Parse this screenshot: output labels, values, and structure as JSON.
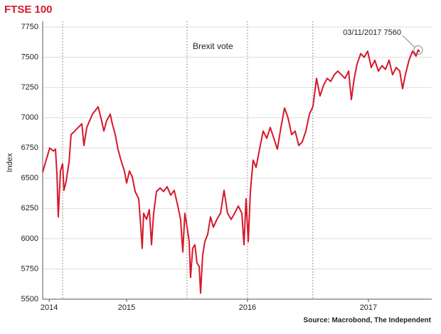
{
  "chart_data": {
    "type": "line",
    "title": "FTSE 100",
    "ylabel": "Index",
    "source": "Source: Macrobond, The Independent",
    "color": "#d7182a",
    "grid": true,
    "xlim": [
      2014.306,
      2017.524
    ],
    "ylim": [
      5500,
      7750
    ],
    "yticks": [
      5500,
      5750,
      6000,
      6250,
      6500,
      6750,
      7000,
      7250,
      7500,
      7750
    ],
    "xticks": [
      {
        "value": 2014.36,
        "label": "2014"
      },
      {
        "value": 2015.0,
        "label": "2015"
      },
      {
        "value": 2016.0,
        "label": "2016"
      },
      {
        "value": 2017.0,
        "label": "2017"
      }
    ],
    "vlines": [
      2014.471,
      2015.5,
      2016.0,
      2016.54
    ],
    "vline_label": {
      "text": "Brexit vote",
      "x": 2015.5
    },
    "annotation": {
      "text": "03/11/2017 7560",
      "x": 2017.412,
      "y": 7560
    },
    "x": [
      2014.306,
      2014.335,
      2014.365,
      2014.394,
      2014.412,
      2014.424,
      2014.435,
      2014.453,
      2014.471,
      2014.482,
      2014.5,
      2014.524,
      2014.541,
      2014.571,
      2014.6,
      2014.63,
      2014.647,
      2014.671,
      2014.694,
      2014.718,
      2014.741,
      2014.765,
      2014.788,
      2014.812,
      2014.835,
      2014.865,
      2014.882,
      2014.906,
      2014.929,
      2014.953,
      2014.982,
      2015.0,
      2015.024,
      2015.047,
      2015.071,
      2015.1,
      2015.118,
      2015.129,
      2015.141,
      2015.165,
      2015.188,
      2015.206,
      2015.224,
      2015.247,
      2015.277,
      2015.306,
      2015.335,
      2015.365,
      2015.394,
      2015.424,
      2015.447,
      2015.465,
      2015.482,
      2015.5,
      2015.518,
      2015.529,
      2015.547,
      2015.565,
      2015.582,
      2015.6,
      2015.612,
      2015.629,
      2015.647,
      2015.671,
      2015.694,
      2015.718,
      2015.747,
      2015.777,
      2015.806,
      2015.835,
      2015.865,
      2015.894,
      2015.924,
      2015.953,
      2015.971,
      2015.988,
      2016.006,
      2016.024,
      2016.047,
      2016.071,
      2016.1,
      2016.13,
      2016.159,
      2016.188,
      2016.218,
      2016.247,
      2016.277,
      2016.306,
      2016.335,
      2016.365,
      2016.394,
      2016.424,
      2016.453,
      2016.483,
      2016.512,
      2016.541,
      2016.571,
      2016.6,
      2016.63,
      2016.659,
      2016.688,
      2016.718,
      2016.747,
      2016.777,
      2016.806,
      2016.836,
      2016.859,
      2016.883,
      2016.906,
      2016.936,
      2016.965,
      2016.994,
      2017.024,
      2017.053,
      2017.083,
      2017.112,
      2017.141,
      2017.171,
      2017.2,
      2017.23,
      2017.259,
      2017.283,
      2017.306,
      2017.336,
      2017.365,
      2017.394,
      2017.412,
      2017.424
    ],
    "values": [
      6550,
      6650,
      6750,
      6725,
      6740,
      6530,
      6180,
      6560,
      6620,
      6400,
      6475,
      6635,
      6860,
      6890,
      6920,
      6950,
      6770,
      6920,
      6975,
      7030,
      7060,
      7090,
      7000,
      6890,
      6975,
      7030,
      6950,
      6860,
      6740,
      6650,
      6560,
      6460,
      6560,
      6510,
      6390,
      6330,
      6095,
      5920,
      6210,
      6160,
      6240,
      5950,
      6210,
      6390,
      6420,
      6390,
      6430,
      6360,
      6400,
      6270,
      6160,
      5890,
      6210,
      6095,
      5975,
      5680,
      5920,
      5950,
      5800,
      5770,
      5550,
      5860,
      5975,
      6035,
      6180,
      6095,
      6160,
      6210,
      6400,
      6210,
      6160,
      6210,
      6270,
      6210,
      5950,
      6330,
      5975,
      6390,
      6650,
      6590,
      6740,
      6890,
      6830,
      6920,
      6830,
      6740,
      6920,
      7080,
      7000,
      6860,
      6890,
      6770,
      6800,
      6890,
      7030,
      7090,
      7325,
      7180,
      7270,
      7325,
      7300,
      7355,
      7385,
      7355,
      7325,
      7385,
      7150,
      7325,
      7445,
      7530,
      7500,
      7550,
      7415,
      7475,
      7385,
      7430,
      7400,
      7475,
      7355,
      7415,
      7385,
      7240,
      7355,
      7475,
      7550,
      7510,
      7560,
      7545
    ]
  }
}
